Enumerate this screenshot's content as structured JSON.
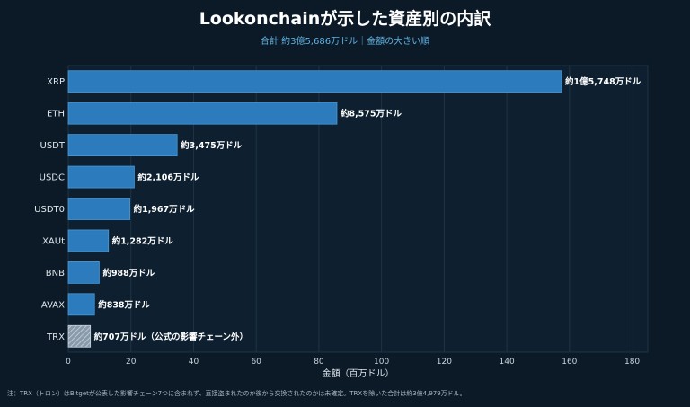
{
  "title": "Lookonchainが示した資産別の内訳",
  "subtitle": "合計 約3億5,686万ドル｜金額の大きい順",
  "footnote": "注：TRX（トロン）はBitgetが公表した影響チェーン7つに含まれず、直接盗まれたのか後から交換されたのかは未確定。TRXを除いた合計は約3億4,979万ドル。",
  "colors": {
    "bar": "#2b7bbd",
    "bar_stroke": "#4a98d4",
    "hatched_bar": "#9fb0c0",
    "background": "#0b1a26",
    "plot_background": "#0e2030",
    "grid": "#1e3445",
    "label": "#ffffff"
  },
  "chart_data": {
    "type": "bar",
    "orientation": "horizontal",
    "categories": [
      "XRP",
      "ETH",
      "USDT",
      "USDC",
      "USDT0",
      "XAUt",
      "BNB",
      "AVAX",
      "TRX"
    ],
    "values": [
      157.48,
      85.75,
      34.75,
      21.06,
      19.67,
      12.82,
      9.88,
      8.38,
      7.07
    ],
    "data_labels": [
      "約1億5,748万ドル",
      "約8,575万ドル",
      "約3,475万ドル",
      "約2,106万ドル",
      "約1,967万ドル",
      "約1,282万ドル",
      "約988万ドル",
      "約838万ドル",
      "約707万ドル（公式の影響チェーン外）"
    ],
    "hatched": [
      "TRX"
    ],
    "xlabel": "金額（百万ドル）",
    "ylabel": "",
    "xlim": [
      0,
      185
    ],
    "xticks": [
      0,
      20,
      40,
      60,
      80,
      100,
      120,
      140,
      160,
      180
    ],
    "grid": true
  }
}
